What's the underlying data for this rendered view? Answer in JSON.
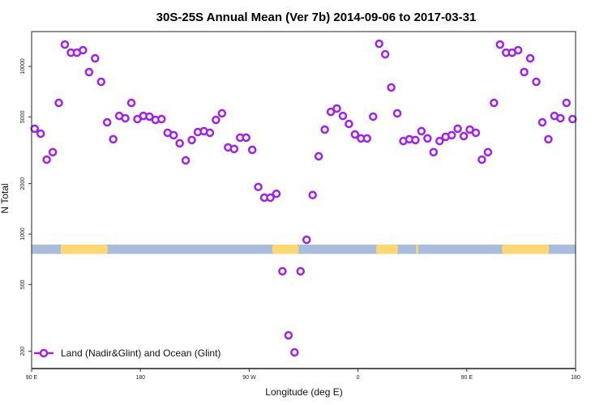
{
  "chart_data": {
    "type": "scatter",
    "title": "30S-25S Annual Mean (Ver 7b)   2014-09-06 to 2017-03-31",
    "xlabel": "Longitude (deg E)",
    "ylabel": "N Total",
    "xlim": [
      90,
      540
    ],
    "ylim": [
      170,
      17000
    ],
    "yscale": "log",
    "x_ticks": [
      {
        "value": 90,
        "label": "90 E"
      },
      {
        "value": 180,
        "label": "180"
      },
      {
        "value": 270,
        "label": "90 W"
      },
      {
        "value": 360,
        "label": "0"
      },
      {
        "value": 450,
        "label": "90 E"
      },
      {
        "value": 540,
        "label": "180"
      }
    ],
    "y_ticks": [
      {
        "value": 200,
        "label": "200"
      },
      {
        "value": 500,
        "label": "500"
      },
      {
        "value": 1000,
        "label": "1000"
      },
      {
        "value": 2000,
        "label": "2000"
      },
      {
        "value": 5000,
        "label": "5000"
      },
      {
        "value": 10000,
        "label": "10000"
      }
    ],
    "grid": false,
    "legend": {
      "position": "bottom-left",
      "entries": [
        "Land (Nadir&Glint) and Ocean (Glint)"
      ]
    },
    "series": [
      {
        "name": "Land (Nadir&Glint) and Ocean (Glint)",
        "color": "#A020F0",
        "x_start": 92.5,
        "x_step": 5,
        "values": [
          4250,
          3970,
          2780,
          3080,
          6060,
          13500,
          12080,
          12080,
          12500,
          9250,
          11170,
          8090,
          4640,
          3680,
          5070,
          4910,
          6060,
          4850,
          5070,
          5020,
          4800,
          4850,
          4020,
          3890,
          3480,
          2750,
          3640,
          4060,
          4110,
          4020,
          4800,
          5250,
          3290,
          3220,
          3760,
          3760,
          3180,
          1910,
          1650,
          1650,
          1740,
          600,
          249,
          197,
          600,
          925,
          1710,
          2910,
          4200,
          5360,
          5610,
          5070,
          4540,
          3930,
          3720,
          3720,
          5020,
          13650,
          11810,
          7490,
          5250,
          3590,
          3680,
          3640,
          4110,
          3720,
          3080,
          3590,
          3800,
          3890,
          4250,
          3840,
          4200,
          4020,
          2780,
          3080,
          6060,
          13500,
          12080,
          12080,
          12500,
          9250,
          11170,
          8090,
          4640,
          3680,
          5070,
          4910,
          6060,
          4850
        ]
      }
    ],
    "surface_band": {
      "ocean_color": "#A7BDDB",
      "land_color": "#FDD771",
      "land_ranges": [
        [
          114,
          153
        ],
        [
          289,
          311
        ],
        [
          375,
          393
        ],
        [
          408,
          410
        ],
        [
          479,
          518
        ]
      ]
    }
  }
}
